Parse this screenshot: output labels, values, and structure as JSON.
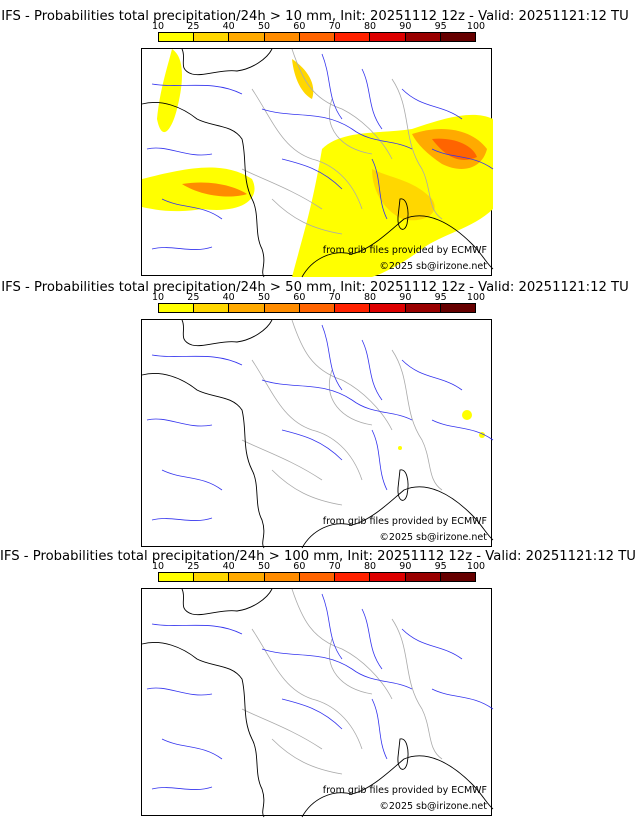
{
  "colorbar": {
    "ticks": [
      "10",
      "25",
      "40",
      "50",
      "60",
      "70",
      "80",
      "90",
      "95",
      "100"
    ],
    "colors": [
      "#ffff00",
      "#ffd700",
      "#ffaa00",
      "#ff8c00",
      "#ff6400",
      "#ff2200",
      "#dd0000",
      "#990000",
      "#660000"
    ]
  },
  "panels": [
    {
      "title": "IFS - Probabilities total precipitation/24h > 10 mm, Init: 20251112 12z - Valid: 20251121:12 TU"
    },
    {
      "title": "IFS - Probabilities total precipitation/24h > 50 mm, Init: 20251112 12z - Valid: 20251121:12 TU"
    },
    {
      "title": "IFS - Probabilities total precipitation/24h > 100 mm, Init: 20251112 12z - Valid: 20251121:12 TU"
    }
  ],
  "credits": {
    "source": "from grib files provided by ECMWF",
    "copyright": "©2025 sb@irizone.net"
  }
}
